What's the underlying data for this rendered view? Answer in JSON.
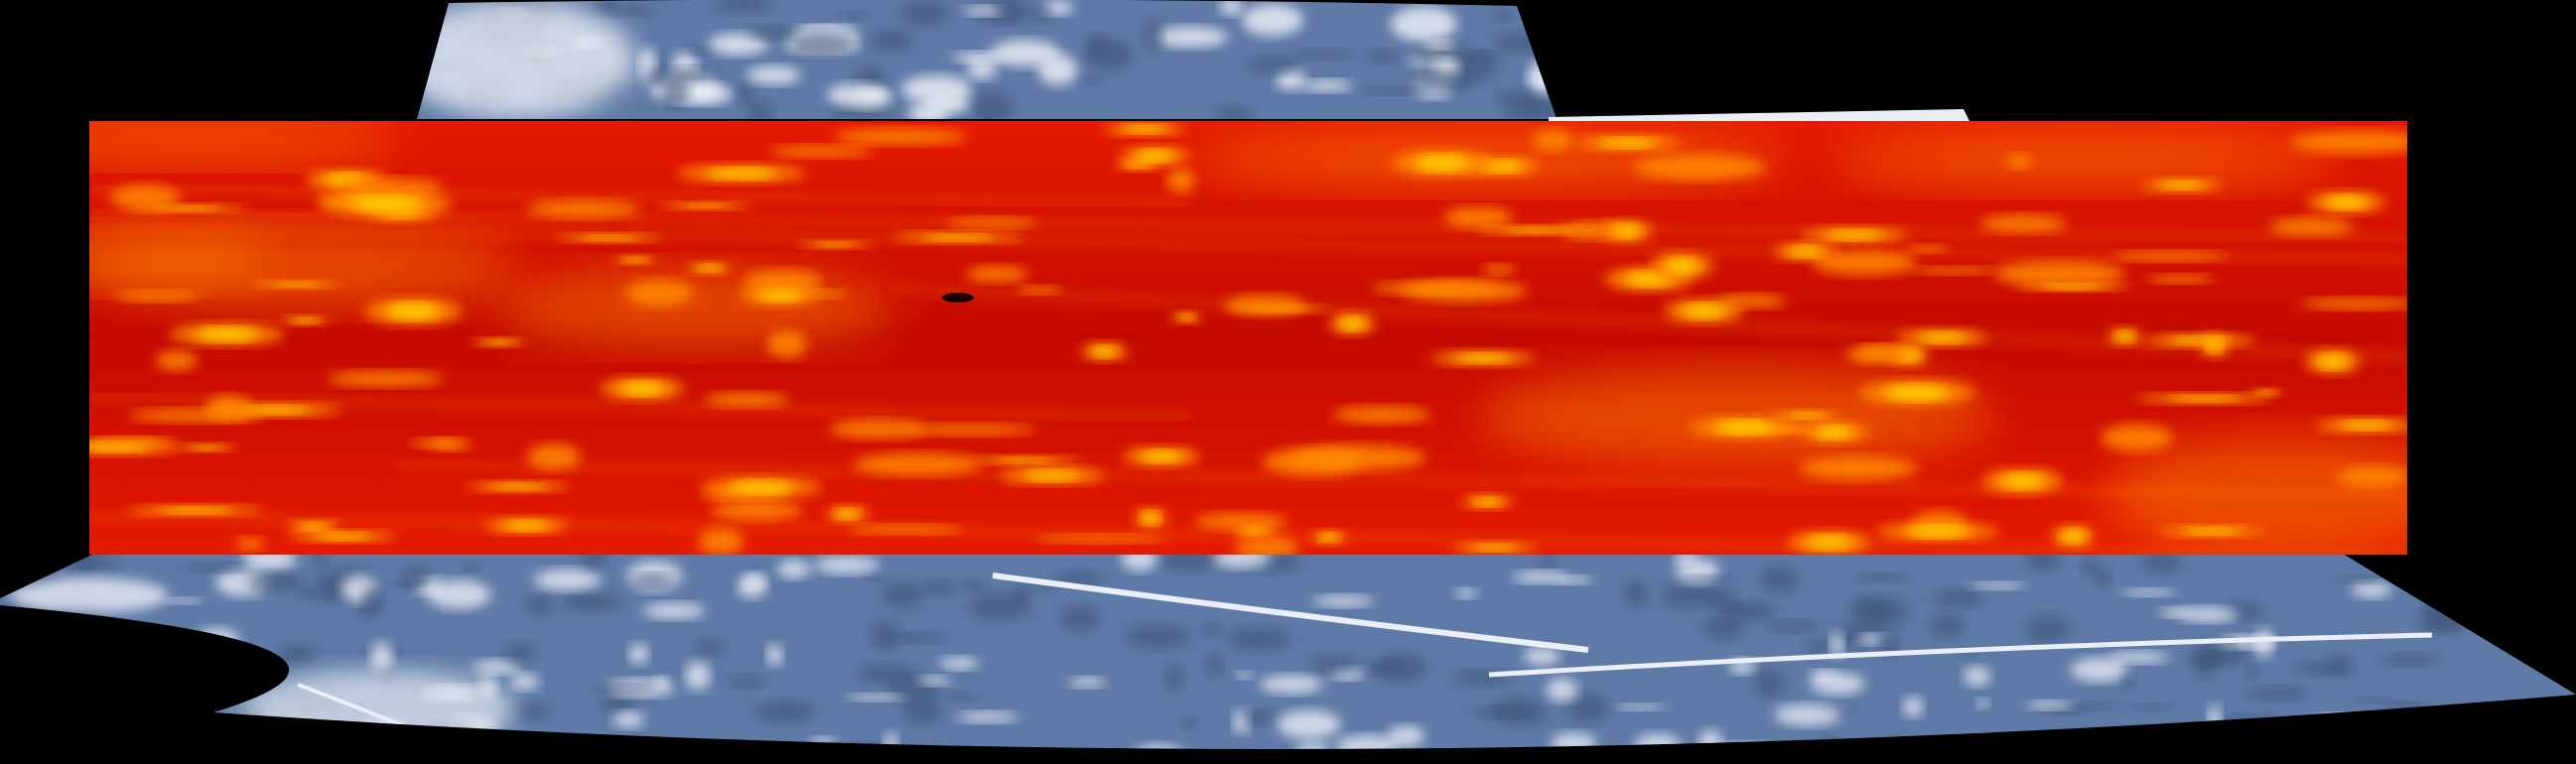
{
  "colors": {
    "background": "#000000",
    "imagery_base": "#5f7aa6",
    "imagery_dark": "#3d5478",
    "imagery_light": "#e9eef7",
    "heatmap_base": "#e41a00",
    "heatmap_dark": "#c40a00",
    "heatmap_hot": "#ff8a00",
    "heatmap_peak": "#ffd800"
  },
  "layers": [
    {
      "name": "aerial-imagery-mosaic",
      "type": "satellite-rgb"
    },
    {
      "name": "thermal-heatmap-overlay",
      "type": "false-color",
      "palette": "red-yellow"
    }
  ]
}
